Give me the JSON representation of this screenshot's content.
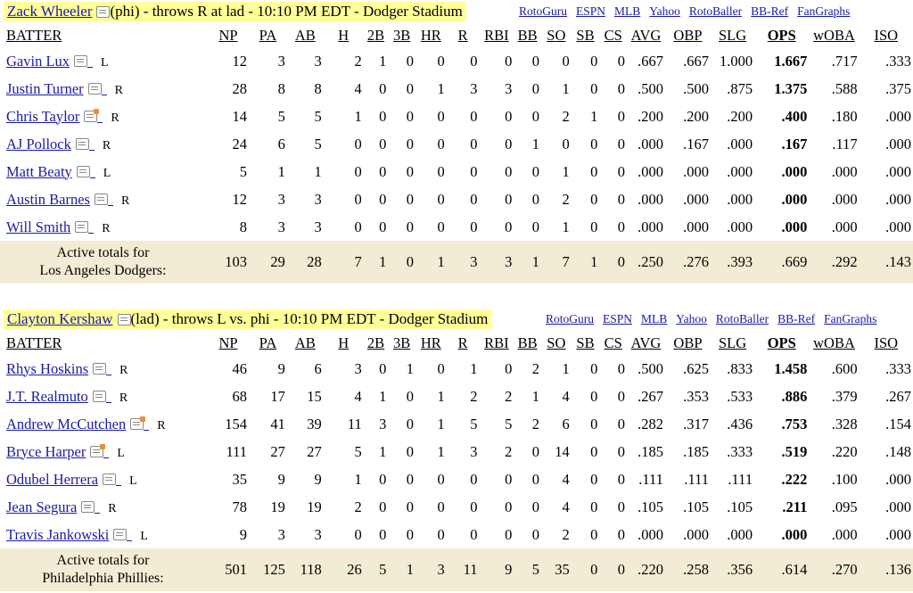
{
  "sections": [
    {
      "pitcher": {
        "name": "Zack Wheeler",
        "detail": "(phi) - throws R at lad - 10:10 PM EDT - Dodger Stadium"
      },
      "links": [
        "RotoGuru",
        "ESPN",
        "MLB",
        "Yahoo",
        "RotoBaller",
        "BB-Ref",
        "FanGraphs"
      ],
      "headers": [
        "BATTER",
        "NP",
        "PA",
        "AB",
        "H",
        "2B",
        "3B",
        "HR",
        "R",
        "RBI",
        "BB",
        "SO",
        "SB",
        "CS",
        "AVG",
        "OBP",
        "SLG",
        "OPS",
        "wOBA",
        "ISO"
      ],
      "rows": [
        {
          "name": "Gavin Lux",
          "hand": "L",
          "hot": false,
          "stats": [
            "12",
            "3",
            "3",
            "2",
            "1",
            "0",
            "0",
            "0",
            "0",
            "0",
            "0",
            "0",
            "0",
            ".667",
            ".667",
            "1.000",
            "1.667",
            ".717",
            ".333"
          ]
        },
        {
          "name": "Justin Turner",
          "hand": "R",
          "hot": false,
          "stats": [
            "28",
            "8",
            "8",
            "4",
            "0",
            "0",
            "1",
            "3",
            "3",
            "0",
            "1",
            "0",
            "0",
            ".500",
            ".500",
            ".875",
            "1.375",
            ".588",
            ".375"
          ]
        },
        {
          "name": "Chris Taylor",
          "hand": "R",
          "hot": true,
          "stats": [
            "14",
            "5",
            "5",
            "1",
            "0",
            "0",
            "0",
            "0",
            "0",
            "0",
            "2",
            "1",
            "0",
            ".200",
            ".200",
            ".200",
            ".400",
            ".180",
            ".000"
          ]
        },
        {
          "name": "AJ Pollock",
          "hand": "R",
          "hot": false,
          "stats": [
            "24",
            "6",
            "5",
            "0",
            "0",
            "0",
            "0",
            "0",
            "0",
            "1",
            "0",
            "0",
            "0",
            ".000",
            ".167",
            ".000",
            ".167",
            ".117",
            ".000"
          ]
        },
        {
          "name": "Matt Beaty",
          "hand": "L",
          "hot": false,
          "stats": [
            "5",
            "1",
            "1",
            "0",
            "0",
            "0",
            "0",
            "0",
            "0",
            "0",
            "1",
            "0",
            "0",
            ".000",
            ".000",
            ".000",
            ".000",
            ".000",
            ".000"
          ]
        },
        {
          "name": "Austin Barnes",
          "hand": "R",
          "hot": false,
          "stats": [
            "12",
            "3",
            "3",
            "0",
            "0",
            "0",
            "0",
            "0",
            "0",
            "0",
            "2",
            "0",
            "0",
            ".000",
            ".000",
            ".000",
            ".000",
            ".000",
            ".000"
          ]
        },
        {
          "name": "Will Smith",
          "hand": "R",
          "hot": false,
          "stats": [
            "8",
            "3",
            "3",
            "0",
            "0",
            "0",
            "0",
            "0",
            "0",
            "0",
            "1",
            "0",
            "0",
            ".000",
            ".000",
            ".000",
            ".000",
            ".000",
            ".000"
          ]
        }
      ],
      "totals": {
        "line1": "Active totals for",
        "line2": "Los Angeles Dodgers:",
        "stats": [
          "103",
          "29",
          "28",
          "7",
          "1",
          "0",
          "1",
          "3",
          "3",
          "1",
          "7",
          "1",
          "0",
          ".250",
          ".276",
          ".393",
          ".669",
          ".292",
          ".143"
        ]
      }
    },
    {
      "pitcher": {
        "name": "Clayton Kershaw",
        "detail": "(lad) - throws L vs. phi - 10:10 PM EDT - Dodger Stadium"
      },
      "links": [
        "RotoGuru",
        "ESPN",
        "MLB",
        "Yahoo",
        "RotoBaller",
        "BB-Ref",
        "FanGraphs"
      ],
      "headers": [
        "BATTER",
        "NP",
        "PA",
        "AB",
        "H",
        "2B",
        "3B",
        "HR",
        "R",
        "RBI",
        "BB",
        "SO",
        "SB",
        "CS",
        "AVG",
        "OBP",
        "SLG",
        "OPS",
        "wOBA",
        "ISO"
      ],
      "rows": [
        {
          "name": "Rhys Hoskins",
          "hand": "R",
          "hot": false,
          "stats": [
            "46",
            "9",
            "6",
            "3",
            "0",
            "1",
            "0",
            "1",
            "0",
            "2",
            "1",
            "0",
            "0",
            ".500",
            ".625",
            ".833",
            "1.458",
            ".600",
            ".333"
          ]
        },
        {
          "name": "J.T. Realmuto",
          "hand": "R",
          "hot": false,
          "stats": [
            "68",
            "17",
            "15",
            "4",
            "1",
            "0",
            "1",
            "2",
            "2",
            "1",
            "4",
            "0",
            "0",
            ".267",
            ".353",
            ".533",
            ".886",
            ".379",
            ".267"
          ]
        },
        {
          "name": "Andrew McCutchen",
          "hand": "R",
          "hot": true,
          "stats": [
            "154",
            "41",
            "39",
            "11",
            "3",
            "0",
            "1",
            "5",
            "5",
            "2",
            "6",
            "0",
            "0",
            ".282",
            ".317",
            ".436",
            ".753",
            ".328",
            ".154"
          ]
        },
        {
          "name": "Bryce Harper",
          "hand": "L",
          "hot": true,
          "stats": [
            "111",
            "27",
            "27",
            "5",
            "1",
            "0",
            "1",
            "3",
            "2",
            "0",
            "14",
            "0",
            "0",
            ".185",
            ".185",
            ".333",
            ".519",
            ".220",
            ".148"
          ]
        },
        {
          "name": "Odubel Herrera",
          "hand": "L",
          "hot": false,
          "stats": [
            "35",
            "9",
            "9",
            "1",
            "0",
            "0",
            "0",
            "0",
            "0",
            "0",
            "4",
            "0",
            "0",
            ".111",
            ".111",
            ".111",
            ".222",
            ".100",
            ".000"
          ]
        },
        {
          "name": "Jean Segura",
          "hand": "R",
          "hot": false,
          "stats": [
            "78",
            "19",
            "19",
            "2",
            "0",
            "0",
            "0",
            "0",
            "0",
            "0",
            "4",
            "0",
            "0",
            ".105",
            ".105",
            ".105",
            ".211",
            ".095",
            ".000"
          ]
        },
        {
          "name": "Travis Jankowski",
          "hand": "L",
          "hot": false,
          "stats": [
            "9",
            "3",
            "3",
            "0",
            "0",
            "0",
            "0",
            "0",
            "0",
            "0",
            "2",
            "0",
            "0",
            ".000",
            ".000",
            ".000",
            ".000",
            ".000",
            ".000"
          ]
        }
      ],
      "totals": {
        "line1": "Active totals for",
        "line2": "Philadelphia Phillies:",
        "stats": [
          "501",
          "125",
          "118",
          "26",
          "5",
          "1",
          "3",
          "11",
          "9",
          "5",
          "35",
          "0",
          "0",
          ".220",
          ".258",
          ".356",
          ".614",
          ".270",
          ".136"
        ]
      }
    }
  ]
}
